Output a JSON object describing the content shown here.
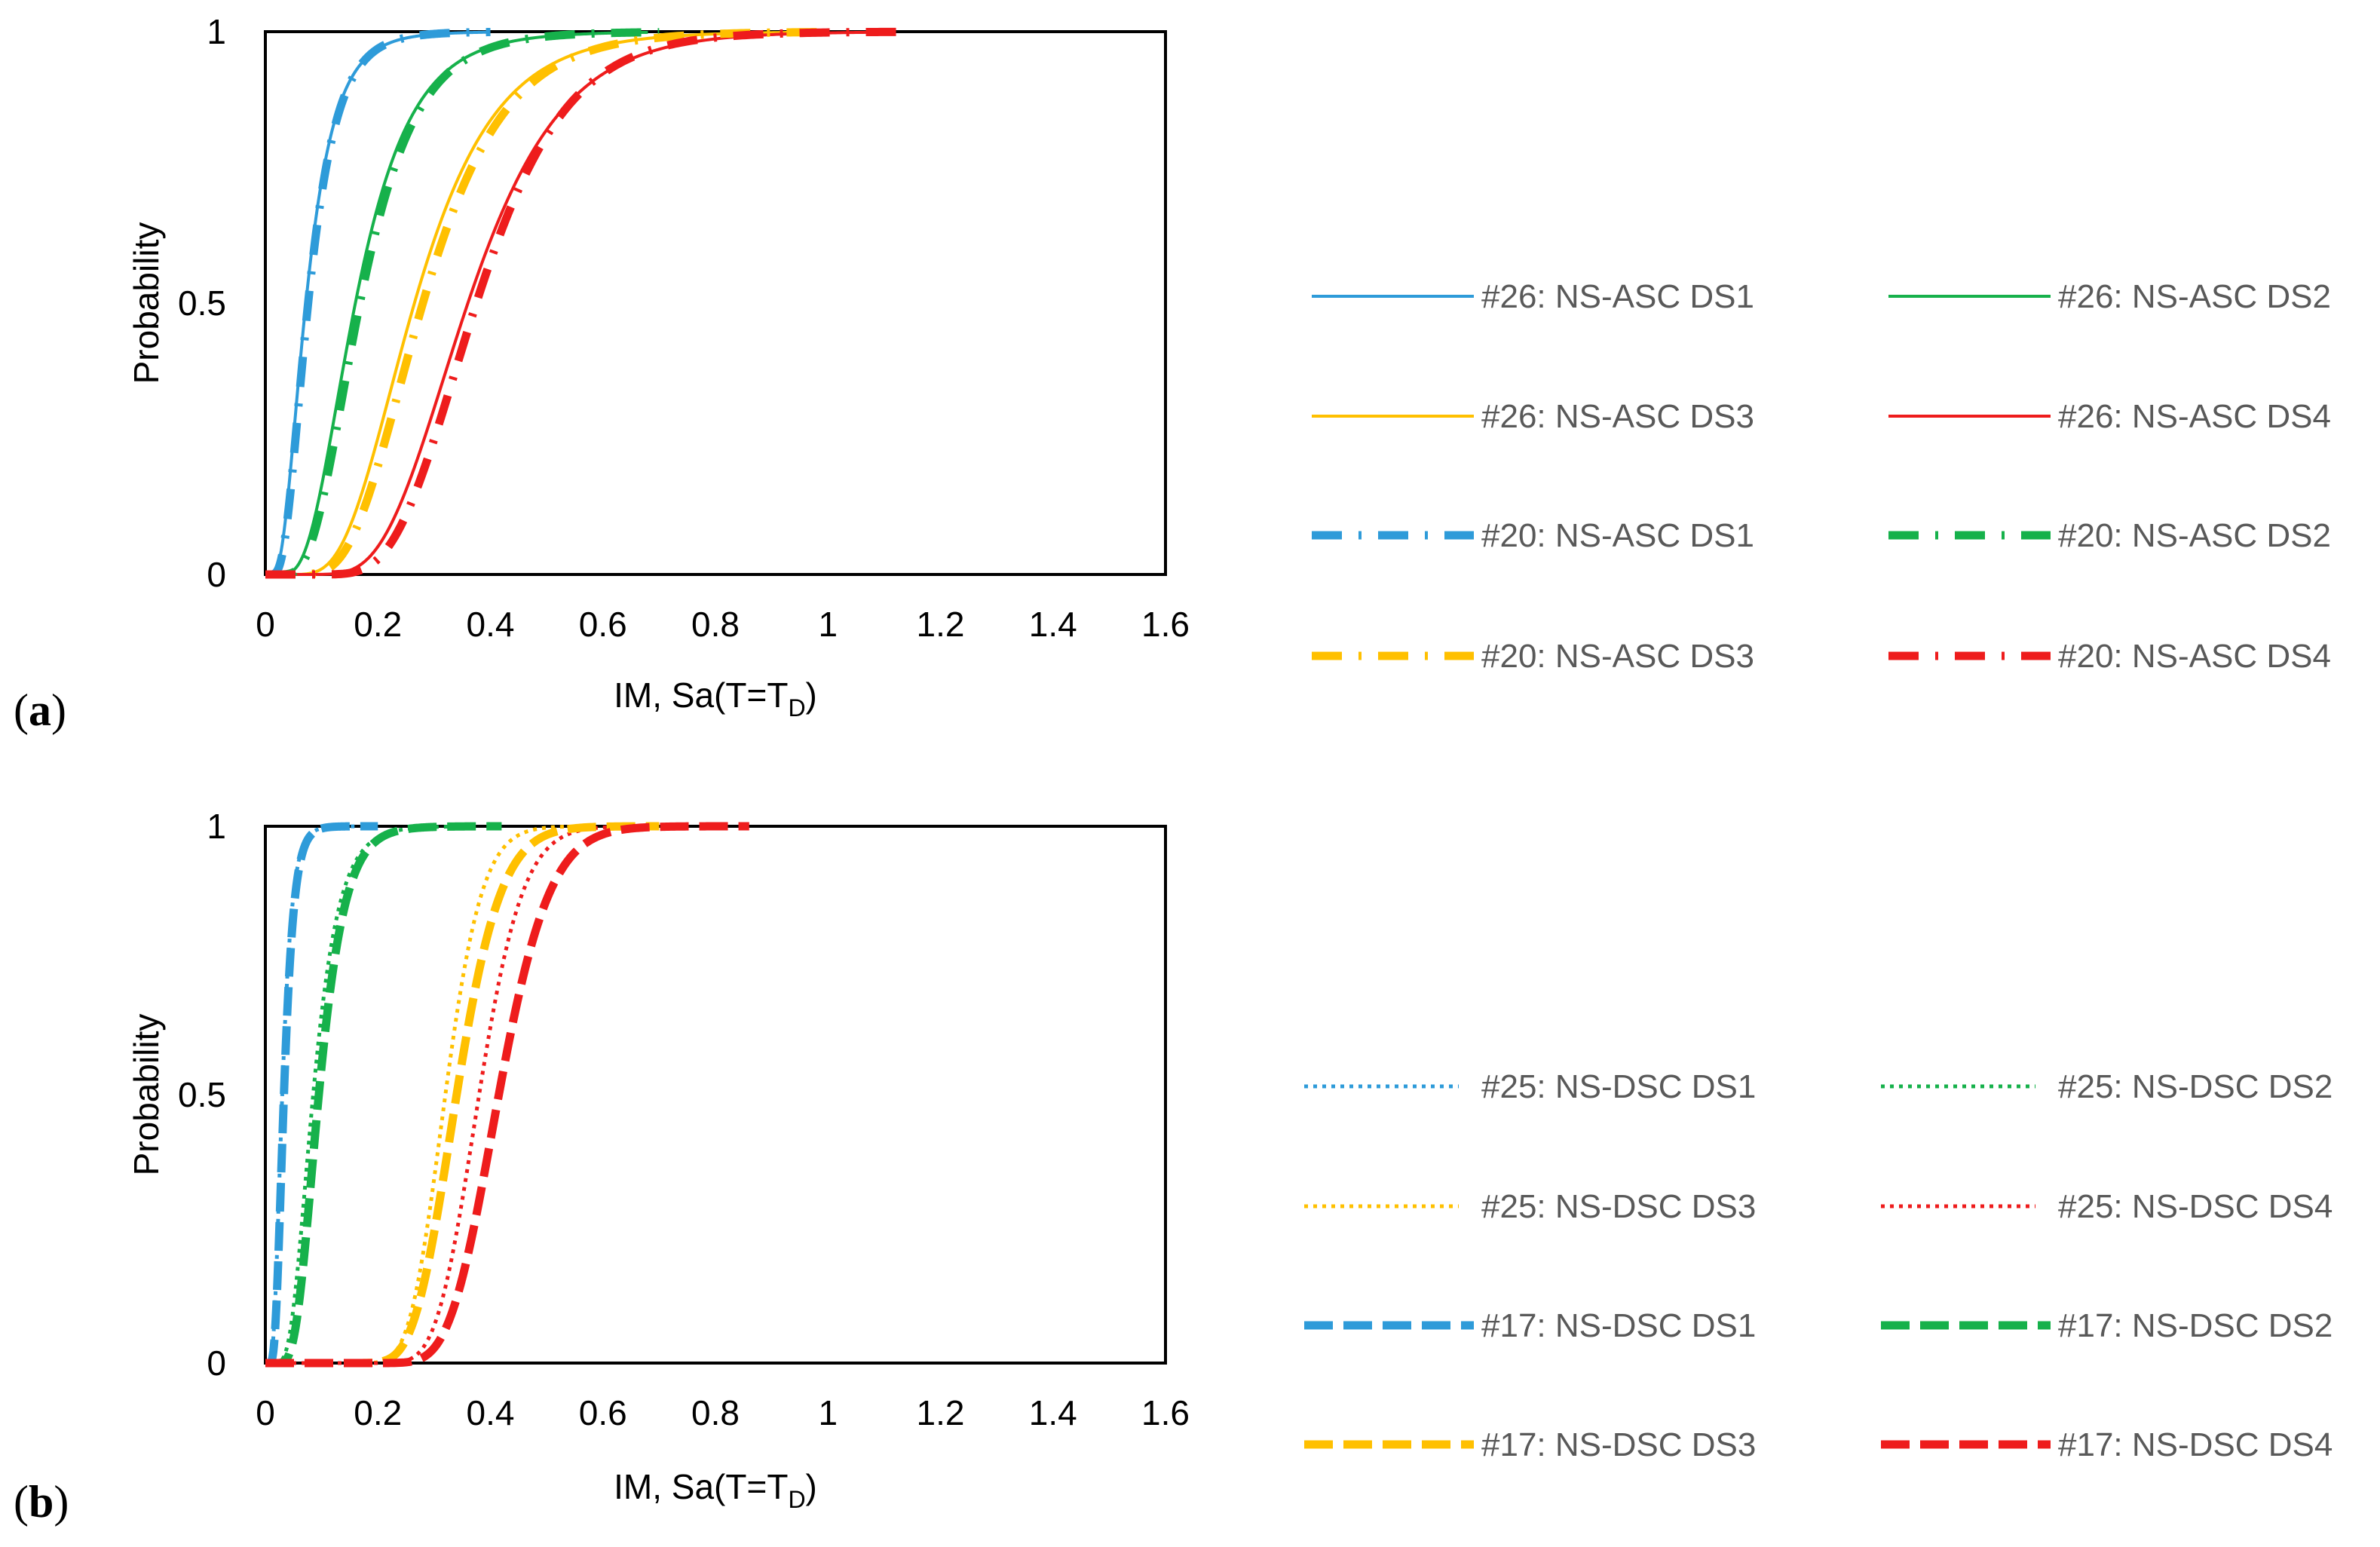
{
  "colors": {
    "DS1": "#2E9BD9",
    "DS2": "#16B14B",
    "DS3": "#FFC000",
    "DS4": "#EE1C1C",
    "axis": "#000000",
    "legend_text": "#595959"
  },
  "chart_data": [
    {
      "type": "line",
      "panel_label": {
        "open": "(",
        "letter": "a",
        "close": ")"
      },
      "xlabel": {
        "main": "IM, Sa(T=T",
        "subscript": "D",
        "close": ")"
      },
      "ylabel": "Probability",
      "xlim": [
        0,
        1.6
      ],
      "ylim": [
        0,
        1
      ],
      "xticks": [
        "0",
        "0.2",
        "0.4",
        "0.6",
        "0.8",
        "1",
        "1.2",
        "1.4",
        "1.6"
      ],
      "yticks": [
        "0",
        "0.5",
        "1"
      ],
      "series": [
        {
          "name": "#26: NS-ASC DS1",
          "state": "DS1",
          "style": "solid",
          "median": 0.072,
          "beta": 0.55,
          "x_max": 0.4
        },
        {
          "name": "#26: NS-ASC DS2",
          "state": "DS2",
          "style": "solid",
          "median": 0.16,
          "beta": 0.48,
          "x_max": 0.68
        },
        {
          "name": "#26: NS-ASC DS3",
          "state": "DS3",
          "style": "solid",
          "median": 0.265,
          "beta": 0.42,
          "x_max": 0.98
        },
        {
          "name": "#26: NS-ASC DS4",
          "state": "DS4",
          "style": "solid",
          "median": 0.36,
          "beta": 0.36,
          "x_max": 1.1
        },
        {
          "name": "#20: NS-ASC DS1",
          "state": "DS1",
          "style": "dashdot",
          "median": 0.076,
          "beta": 0.52,
          "x_max": 0.4
        },
        {
          "name": "#20: NS-ASC DS2",
          "state": "DS2",
          "style": "dashdot",
          "median": 0.168,
          "beta": 0.46,
          "x_max": 0.7
        },
        {
          "name": "#20: NS-ASC DS3",
          "state": "DS3",
          "style": "dashdot",
          "median": 0.28,
          "beta": 0.4,
          "x_max": 1.0
        },
        {
          "name": "#20: NS-ASC DS4",
          "state": "DS4",
          "style": "dashdot",
          "median": 0.375,
          "beta": 0.33,
          "x_max": 1.15
        }
      ]
    },
    {
      "type": "line",
      "panel_label": {
        "open": "(",
        "letter": "b",
        "close": ")"
      },
      "xlabel": {
        "main": "IM, Sa(T=T",
        "subscript": "D",
        "close": ")"
      },
      "ylabel": "Probability",
      "xlim": [
        0,
        1.6
      ],
      "ylim": [
        0,
        1
      ],
      "xticks": [
        "0",
        "0.2",
        "0.4",
        "0.6",
        "0.8",
        "1",
        "1.2",
        "1.4",
        "1.6"
      ],
      "yticks": [
        "0",
        "0.5",
        "1"
      ],
      "series": [
        {
          "name": "#25: NS-DSC DS1",
          "state": "DS1",
          "style": "dotted",
          "median": 0.03,
          "beta": 0.45,
          "x_max": 0.16
        },
        {
          "name": "#25: NS-DSC DS2",
          "state": "DS2",
          "style": "dotted",
          "median": 0.085,
          "beta": 0.42,
          "x_max": 0.35
        },
        {
          "name": "#25: NS-DSC DS3",
          "state": "DS3",
          "style": "dotted",
          "median": 0.32,
          "beta": 0.16,
          "x_max": 0.58
        },
        {
          "name": "#25: NS-DSC DS4",
          "state": "DS4",
          "style": "dotted",
          "median": 0.38,
          "beta": 0.16,
          "x_max": 0.62
        },
        {
          "name": "#17: NS-DSC DS1",
          "state": "DS1",
          "style": "dashed",
          "median": 0.033,
          "beta": 0.42,
          "x_max": 0.2
        },
        {
          "name": "#17: NS-DSC DS2",
          "state": "DS2",
          "style": "dashed",
          "median": 0.095,
          "beta": 0.38,
          "x_max": 0.42
        },
        {
          "name": "#17: NS-DSC DS3",
          "state": "DS3",
          "style": "dashed",
          "median": 0.34,
          "beta": 0.18,
          "x_max": 0.7
        },
        {
          "name": "#17: NS-DSC DS4",
          "state": "DS4",
          "style": "dashed",
          "median": 0.415,
          "beta": 0.17,
          "x_max": 0.86
        }
      ]
    }
  ]
}
